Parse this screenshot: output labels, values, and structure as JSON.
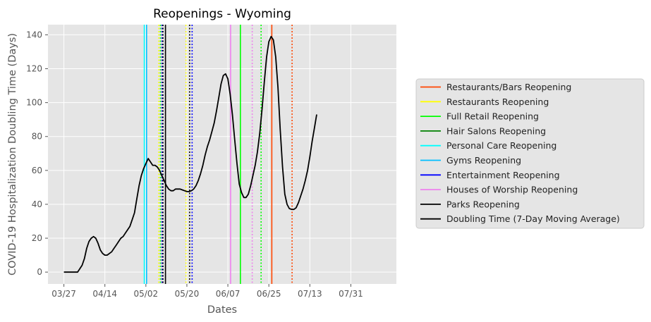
{
  "chart_data": {
    "type": "line",
    "title": "Reopenings - Wyoming",
    "xlabel": "Dates",
    "ylabel": "COVID-19 Hospitalization Doubling Time (Days)",
    "x_ticks": [
      {
        "label": "03/27",
        "day": 0
      },
      {
        "label": "04/14",
        "day": 18
      },
      {
        "label": "05/02",
        "day": 36
      },
      {
        "label": "05/20",
        "day": 54
      },
      {
        "label": "06/07",
        "day": 72
      },
      {
        "label": "06/25",
        "day": 90
      },
      {
        "label": "07/13",
        "day": 108
      },
      {
        "label": "07/31",
        "day": 126
      }
    ],
    "y_ticks": [
      0,
      20,
      40,
      60,
      80,
      100,
      120,
      140
    ],
    "xlim": [
      -7,
      146
    ],
    "ylim": [
      -7,
      146
    ],
    "grid": true,
    "legend_position": "right",
    "series": [
      {
        "name": "Doubling Time (7-Day Moving Average)",
        "color": "#000000",
        "points": [
          [
            0,
            0
          ],
          [
            2,
            0
          ],
          [
            4,
            0
          ],
          [
            6,
            0
          ],
          [
            7,
            2
          ],
          [
            8,
            4
          ],
          [
            9,
            8
          ],
          [
            10,
            14
          ],
          [
            11,
            18
          ],
          [
            12,
            20
          ],
          [
            13,
            21
          ],
          [
            14,
            20
          ],
          [
            15,
            17
          ],
          [
            16,
            13
          ],
          [
            17,
            11
          ],
          [
            18,
            10
          ],
          [
            19,
            10
          ],
          [
            20,
            11
          ],
          [
            21,
            12
          ],
          [
            22,
            14
          ],
          [
            23,
            16
          ],
          [
            24,
            18
          ],
          [
            25,
            20
          ],
          [
            26,
            21
          ],
          [
            27,
            23
          ],
          [
            28,
            25
          ],
          [
            29,
            27
          ],
          [
            30,
            31
          ],
          [
            31,
            35
          ],
          [
            32,
            43
          ],
          [
            33,
            51
          ],
          [
            34,
            57
          ],
          [
            35,
            61
          ],
          [
            36,
            64
          ],
          [
            37,
            67
          ],
          [
            38,
            65
          ],
          [
            39,
            63
          ],
          [
            40,
            63
          ],
          [
            41,
            62
          ],
          [
            42,
            60
          ],
          [
            43,
            57
          ],
          [
            44,
            54
          ],
          [
            45,
            51
          ],
          [
            46,
            49
          ],
          [
            47,
            48
          ],
          [
            48,
            48
          ],
          [
            49,
            49
          ],
          [
            50,
            49
          ],
          [
            51,
            49
          ],
          [
            52,
            48.5
          ],
          [
            53,
            48
          ],
          [
            54,
            47.5
          ],
          [
            55,
            47.5
          ],
          [
            56,
            48
          ],
          [
            57,
            49
          ],
          [
            58,
            51
          ],
          [
            59,
            54
          ],
          [
            60,
            58
          ],
          [
            61,
            63
          ],
          [
            62,
            69
          ],
          [
            63,
            74
          ],
          [
            64,
            78
          ],
          [
            65,
            83
          ],
          [
            66,
            88
          ],
          [
            67,
            95
          ],
          [
            68,
            103
          ],
          [
            69,
            111
          ],
          [
            70,
            116
          ],
          [
            71,
            117
          ],
          [
            72,
            114
          ],
          [
            73,
            105
          ],
          [
            74,
            93
          ],
          [
            75,
            78
          ],
          [
            76,
            64
          ],
          [
            77,
            52
          ],
          [
            78,
            47
          ],
          [
            79,
            44
          ],
          [
            80,
            44
          ],
          [
            81,
            46
          ],
          [
            82,
            51
          ],
          [
            83,
            57
          ],
          [
            84,
            63
          ],
          [
            85,
            71
          ],
          [
            86,
            82
          ],
          [
            87,
            96
          ],
          [
            88,
            112
          ],
          [
            89,
            127
          ],
          [
            90,
            136
          ],
          [
            91,
            139
          ],
          [
            92,
            137
          ],
          [
            93,
            127
          ],
          [
            94,
            109
          ],
          [
            95,
            84
          ],
          [
            96,
            62
          ],
          [
            97,
            46
          ],
          [
            98,
            40
          ],
          [
            99,
            37.5
          ],
          [
            100,
            37
          ],
          [
            101,
            37
          ],
          [
            102,
            38
          ],
          [
            103,
            41
          ],
          [
            104,
            45
          ],
          [
            105,
            49
          ],
          [
            106,
            54
          ],
          [
            107,
            60
          ],
          [
            108,
            68
          ],
          [
            109,
            77
          ],
          [
            110,
            85
          ],
          [
            111,
            93
          ]
        ]
      }
    ],
    "event_lines": [
      {
        "day": 35.3,
        "color": "#00ffff",
        "style": "solid"
      },
      {
        "day": 36.3,
        "color": "#00bfff",
        "style": "solid"
      },
      {
        "day": 41.7,
        "color": "#ffff00",
        "style": "dotted"
      },
      {
        "day": 42.4,
        "color": "#00ff00",
        "style": "dotted"
      },
      {
        "day": 43.1,
        "color": "#0000ff",
        "style": "dotted"
      },
      {
        "day": 43.5,
        "color": "#000000",
        "style": "dotted"
      },
      {
        "day": 44.6,
        "color": "#000000",
        "style": "solid"
      },
      {
        "day": 53.6,
        "color": "#ffff00",
        "style": "dotted"
      },
      {
        "day": 55.2,
        "color": "#000000",
        "style": "dotted"
      },
      {
        "day": 56.3,
        "color": "#0000ff",
        "style": "dotted"
      },
      {
        "day": 73.2,
        "color": "#ee82ee",
        "style": "solid"
      },
      {
        "day": 77.5,
        "color": "#00ff00",
        "style": "solid"
      },
      {
        "day": 82.7,
        "color": "#ee82ee",
        "style": "dotted"
      },
      {
        "day": 86.6,
        "color": "#00ff00",
        "style": "dotted"
      },
      {
        "day": 91.3,
        "color": "#ff4500",
        "style": "solid"
      },
      {
        "day": 100.2,
        "color": "#ff4500",
        "style": "dotted"
      }
    ],
    "legend": [
      {
        "label": "Restaurants/Bars Reopening",
        "color": "#ff4500"
      },
      {
        "label": "Restaurants Reopening",
        "color": "#ffff00"
      },
      {
        "label": "Full Retail Reopening",
        "color": "#00ff00"
      },
      {
        "label": "Hair Salons Reopening",
        "color": "#008000"
      },
      {
        "label": "Personal Care Reopening",
        "color": "#00ffff"
      },
      {
        "label": "Gyms Reopening",
        "color": "#00bfff"
      },
      {
        "label": "Entertainment Reopening",
        "color": "#0000ff"
      },
      {
        "label": "Houses of Worship Reopening",
        "color": "#ee82ee"
      },
      {
        "label": "Parks Reopening",
        "color": "#000000"
      },
      {
        "label": "Doubling Time (7-Day Moving Average)",
        "color": "#000000"
      }
    ]
  }
}
